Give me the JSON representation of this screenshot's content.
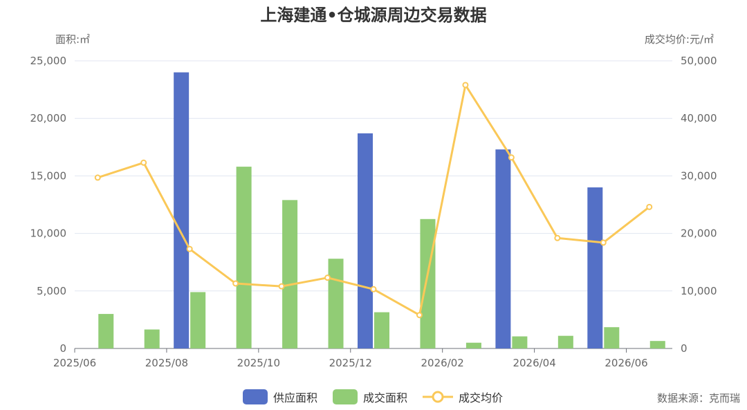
{
  "chart_data": {
    "type": "bar",
    "title": "上海建通•仓城源周边交易数据",
    "left_unit": "面积:㎡",
    "right_unit": "成交均价:元/㎡",
    "x_labels": [
      "2025/06",
      "2025/08",
      "2025/10",
      "2025/12",
      "2026/02",
      "2026/04",
      "2026/06"
    ],
    "categories": [
      "2025/06",
      "2025/07",
      "2025/08",
      "2025/09",
      "2025/10",
      "2025/11",
      "2025/12",
      "2026/01",
      "2026/02",
      "2026/03",
      "2026/04",
      "2026/05",
      "2026/06"
    ],
    "y_left": {
      "min": 0,
      "max": 25000,
      "ticks": [
        "0",
        "5,000",
        "10,000",
        "15,000",
        "20,000",
        "25,000"
      ]
    },
    "y_right": {
      "min": 0,
      "max": 50000,
      "ticks": [
        "0",
        "10,000",
        "20,000",
        "30,000",
        "40,000",
        "50,000"
      ]
    },
    "grid": true,
    "legend_position": "bottom-center",
    "series": [
      {
        "name": "供应面积",
        "type": "bar",
        "axis": "left",
        "color": "#5470c6",
        "values": [
          0,
          0,
          24000,
          0,
          0,
          0,
          18700,
          0,
          0,
          17300,
          0,
          14000,
          0
        ]
      },
      {
        "name": "成交面积",
        "type": "bar",
        "axis": "left",
        "color": "#91cc75",
        "values": [
          3000,
          1650,
          4900,
          15800,
          12900,
          7800,
          3150,
          11250,
          500,
          1050,
          1100,
          1850,
          650
        ]
      },
      {
        "name": "成交均价",
        "type": "line",
        "axis": "right",
        "color": "#fac858",
        "values": [
          29700,
          32300,
          17300,
          11300,
          10800,
          12300,
          10300,
          5800,
          45800,
          33200,
          19200,
          18400,
          24600
        ]
      }
    ]
  },
  "footer": {
    "source": "数据来源：克而瑞"
  }
}
